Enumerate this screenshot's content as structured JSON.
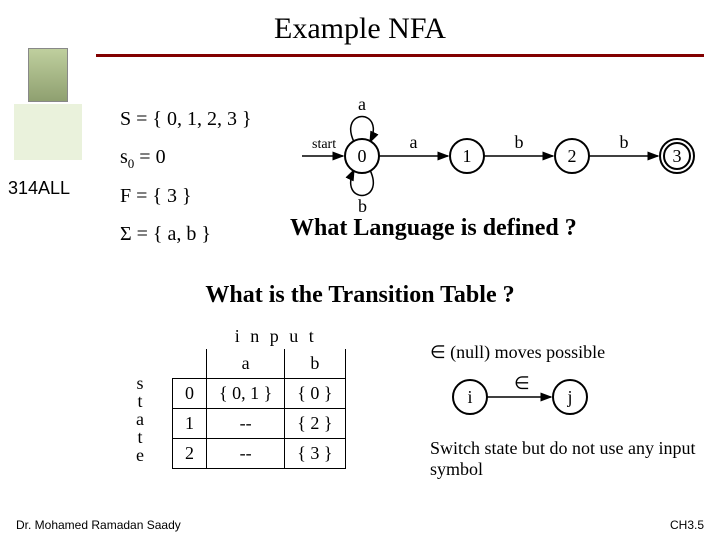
{
  "title": "Example NFA",
  "sideLabel": "314ALL",
  "defs": {
    "S": "S = { 0, 1, 2, 3 }",
    "s0_pre": "s",
    "s0_sub": "0",
    "s0_post": " = 0",
    "F": "F = { 3 }",
    "Sigma": "Σ = { a, b }"
  },
  "nfa": {
    "start_label": "start",
    "self_loop_top": "a",
    "self_loop_bottom": "b",
    "states": [
      "0",
      "1",
      "2",
      "3"
    ],
    "edge_labels": [
      "a",
      "b",
      "b"
    ],
    "node_radius": 17,
    "node_fill": "#ffffff",
    "node_stroke": "#000000",
    "font_size": 18,
    "label_font_size": 18,
    "positions_x": [
      60,
      165,
      270,
      375
    ],
    "y": 66
  },
  "q1": "What Language is defined ?",
  "q2": "What is the Transition Table ?",
  "table": {
    "input_label": "i n p u t",
    "state_label": [
      "s",
      "t",
      "a",
      "t",
      "e"
    ],
    "cols": [
      "a",
      "b"
    ],
    "rows": [
      {
        "state": "0",
        "cells": [
          "{ 0, 1 }",
          "{ 0 }"
        ]
      },
      {
        "state": "1",
        "cells": [
          "--",
          "{ 2 }"
        ]
      },
      {
        "state": "2",
        "cells": [
          "--",
          "{ 3 }"
        ]
      }
    ]
  },
  "right": {
    "eps_line": "∈ (null) moves possible",
    "i_label": "i",
    "j_label": "j",
    "eps_edge": "∈",
    "switch_text": "Switch state but do not use any input symbol"
  },
  "footer": {
    "left": "Dr. Mohamed Ramadan Saady",
    "right": "CH3.5"
  },
  "colors": {
    "divider": "#820000"
  }
}
